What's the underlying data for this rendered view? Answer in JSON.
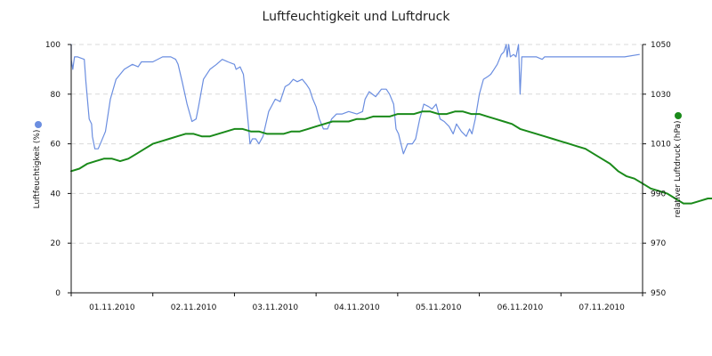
{
  "chart_data": {
    "type": "line",
    "title": "Luftfeuchtigkeit und Luftdruck",
    "categories": [
      "01.11.2010",
      "02.11.2010",
      "03.11.2010",
      "04.11.2010",
      "05.11.2010",
      "06.11.2010",
      "07.11.2010"
    ],
    "x_range_days": [
      0,
      7
    ],
    "series": [
      {
        "name": "",
        "axis": "left",
        "color": "#6b8ee0",
        "points": [
          [
            0.0,
            100
          ],
          [
            0.0,
            94
          ],
          [
            0.02,
            90
          ],
          [
            0.04,
            95
          ],
          [
            0.08,
            95
          ],
          [
            0.16,
            94
          ],
          [
            0.18,
            85
          ],
          [
            0.22,
            70
          ],
          [
            0.25,
            68
          ],
          [
            0.26,
            63
          ],
          [
            0.29,
            58
          ],
          [
            0.33,
            58
          ],
          [
            0.37,
            61
          ],
          [
            0.42,
            65
          ],
          [
            0.48,
            78
          ],
          [
            0.55,
            86
          ],
          [
            0.65,
            90
          ],
          [
            0.75,
            92
          ],
          [
            0.82,
            91
          ],
          [
            0.86,
            93
          ],
          [
            1.0,
            93
          ],
          [
            1.12,
            95
          ],
          [
            1.22,
            95
          ],
          [
            1.28,
            94
          ],
          [
            1.31,
            92
          ],
          [
            1.36,
            85
          ],
          [
            1.42,
            76
          ],
          [
            1.48,
            69
          ],
          [
            1.53,
            70
          ],
          [
            1.56,
            75
          ],
          [
            1.62,
            86
          ],
          [
            1.7,
            90
          ],
          [
            1.78,
            92
          ],
          [
            1.85,
            94
          ],
          [
            1.92,
            93
          ],
          [
            2.0,
            92
          ],
          [
            2.02,
            90
          ],
          [
            2.07,
            91
          ],
          [
            2.11,
            88
          ],
          [
            2.14,
            78
          ],
          [
            2.17,
            68
          ],
          [
            2.19,
            60
          ],
          [
            2.22,
            62
          ],
          [
            2.26,
            62
          ],
          [
            2.3,
            60
          ],
          [
            2.35,
            63
          ],
          [
            2.42,
            73
          ],
          [
            2.5,
            78
          ],
          [
            2.56,
            77
          ],
          [
            2.62,
            83
          ],
          [
            2.67,
            84
          ],
          [
            2.72,
            86
          ],
          [
            2.77,
            85
          ],
          [
            2.83,
            86
          ],
          [
            2.88,
            84
          ],
          [
            2.92,
            82
          ],
          [
            2.96,
            78
          ],
          [
            3.0,
            75
          ],
          [
            3.04,
            70
          ],
          [
            3.09,
            66
          ],
          [
            3.14,
            66
          ],
          [
            3.19,
            70
          ],
          [
            3.25,
            72
          ],
          [
            3.32,
            72
          ],
          [
            3.4,
            73
          ],
          [
            3.5,
            72
          ],
          [
            3.57,
            73
          ],
          [
            3.6,
            78
          ],
          [
            3.65,
            81
          ],
          [
            3.73,
            79
          ],
          [
            3.8,
            82
          ],
          [
            3.86,
            82
          ],
          [
            3.9,
            80
          ],
          [
            3.95,
            76
          ],
          [
            3.98,
            66
          ],
          [
            4.01,
            64
          ],
          [
            4.04,
            60
          ],
          [
            4.07,
            56
          ],
          [
            4.12,
            60
          ],
          [
            4.18,
            60
          ],
          [
            4.22,
            62
          ],
          [
            4.27,
            70
          ],
          [
            4.32,
            76
          ],
          [
            4.38,
            75
          ],
          [
            4.42,
            74
          ],
          [
            4.47,
            76
          ],
          [
            4.52,
            70
          ],
          [
            4.57,
            69
          ],
          [
            4.63,
            67
          ],
          [
            4.68,
            64
          ],
          [
            4.72,
            68
          ],
          [
            4.78,
            65
          ],
          [
            4.84,
            63
          ],
          [
            4.88,
            66
          ],
          [
            4.91,
            64
          ],
          [
            4.95,
            70
          ],
          [
            5.0,
            80
          ],
          [
            5.05,
            86
          ],
          [
            5.1,
            87
          ],
          [
            5.14,
            88
          ],
          [
            5.18,
            90
          ],
          [
            5.22,
            92
          ],
          [
            5.27,
            96
          ],
          [
            5.3,
            97
          ],
          [
            5.33,
            100
          ],
          [
            5.34,
            95
          ],
          [
            5.36,
            100
          ],
          [
            5.38,
            95
          ],
          [
            5.42,
            96
          ],
          [
            5.45,
            95
          ],
          [
            5.48,
            100
          ],
          [
            5.5,
            80
          ],
          [
            5.52,
            95
          ],
          [
            5.57,
            95
          ],
          [
            5.7,
            95
          ],
          [
            5.77,
            94
          ],
          [
            5.8,
            95
          ],
          [
            6.0,
            95
          ],
          [
            6.2,
            95
          ],
          [
            6.4,
            95
          ],
          [
            6.6,
            95
          ],
          [
            6.78,
            95
          ],
          [
            6.96,
            96
          ]
        ]
      },
      {
        "name": "",
        "axis": "right",
        "color": "#1a8a1a",
        "points": [
          [
            0.0,
            999
          ],
          [
            0.1,
            1000
          ],
          [
            0.2,
            1002
          ],
          [
            0.3,
            1003
          ],
          [
            0.4,
            1004
          ],
          [
            0.5,
            1004
          ],
          [
            0.6,
            1003
          ],
          [
            0.7,
            1004
          ],
          [
            0.8,
            1006
          ],
          [
            0.9,
            1008
          ],
          [
            1.0,
            1010
          ],
          [
            1.1,
            1011
          ],
          [
            1.2,
            1012
          ],
          [
            1.3,
            1013
          ],
          [
            1.4,
            1014
          ],
          [
            1.5,
            1014
          ],
          [
            1.6,
            1013
          ],
          [
            1.7,
            1013
          ],
          [
            1.8,
            1014
          ],
          [
            1.9,
            1015
          ],
          [
            2.0,
            1016
          ],
          [
            2.1,
            1016
          ],
          [
            2.2,
            1015
          ],
          [
            2.3,
            1015
          ],
          [
            2.4,
            1014
          ],
          [
            2.5,
            1014
          ],
          [
            2.6,
            1014
          ],
          [
            2.7,
            1015
          ],
          [
            2.8,
            1015
          ],
          [
            2.9,
            1016
          ],
          [
            3.0,
            1017
          ],
          [
            3.1,
            1018
          ],
          [
            3.2,
            1019
          ],
          [
            3.3,
            1019
          ],
          [
            3.4,
            1019
          ],
          [
            3.5,
            1020
          ],
          [
            3.6,
            1020
          ],
          [
            3.7,
            1021
          ],
          [
            3.8,
            1021
          ],
          [
            3.9,
            1021
          ],
          [
            4.0,
            1022
          ],
          [
            4.1,
            1022
          ],
          [
            4.2,
            1022
          ],
          [
            4.3,
            1023
          ],
          [
            4.4,
            1023
          ],
          [
            4.5,
            1022
          ],
          [
            4.6,
            1022
          ],
          [
            4.7,
            1023
          ],
          [
            4.8,
            1023
          ],
          [
            4.9,
            1022
          ],
          [
            5.0,
            1022
          ],
          [
            5.1,
            1021
          ],
          [
            5.2,
            1020
          ],
          [
            5.3,
            1019
          ],
          [
            5.4,
            1018
          ],
          [
            5.5,
            1016
          ],
          [
            5.6,
            1015
          ],
          [
            5.7,
            1014
          ],
          [
            5.8,
            1013
          ],
          [
            5.9,
            1012
          ],
          [
            6.0,
            1011
          ],
          [
            6.1,
            1010
          ],
          [
            6.2,
            1009
          ],
          [
            6.3,
            1008
          ],
          [
            6.4,
            1006
          ],
          [
            6.5,
            1004
          ],
          [
            6.6,
            1002
          ],
          [
            6.7,
            999
          ],
          [
            6.8,
            997
          ],
          [
            6.9,
            996
          ],
          [
            7.0,
            994
          ],
          [
            7.1,
            992
          ],
          [
            7.2,
            991
          ],
          [
            7.3,
            990
          ],
          [
            7.4,
            988
          ],
          [
            7.45,
            987
          ],
          [
            7.5,
            986
          ],
          [
            7.6,
            986
          ],
          [
            7.7,
            987
          ],
          [
            7.8,
            988
          ],
          [
            7.9,
            988
          ],
          [
            8.0,
            987
          ]
        ]
      }
    ],
    "y_left": {
      "label": "Luftfeuchtigkeit (%)",
      "range": [
        0,
        100
      ],
      "ticks": [
        0,
        20,
        40,
        60,
        80,
        100
      ]
    },
    "y_right": {
      "label": "relativer Luftdruck (hPa)",
      "range": [
        950,
        1050
      ],
      "ticks": [
        950,
        970,
        990,
        1010,
        1030,
        1050
      ]
    },
    "grid": true,
    "legend": "none",
    "legend_markers": {
      "left_color": "#6b8ee0",
      "right_color": "#1a8a1a"
    }
  }
}
